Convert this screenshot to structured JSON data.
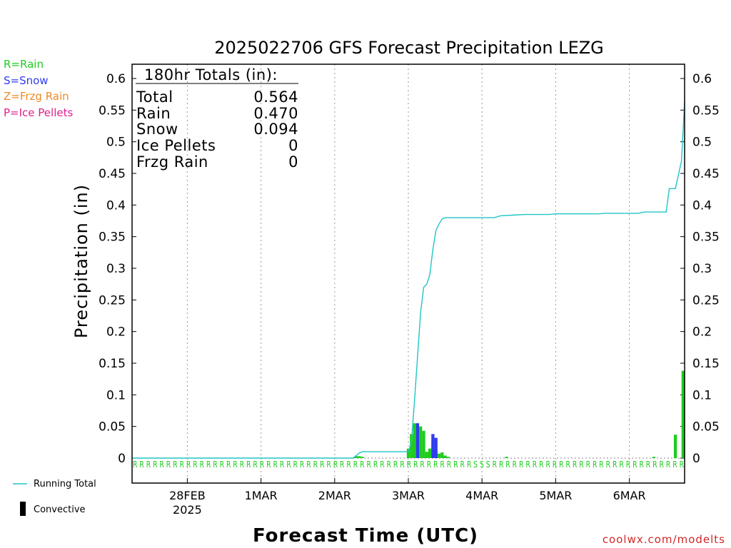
{
  "chart_data": {
    "type": "bar",
    "title": "2025022706 GFS Forecast Precipitation LEZG",
    "xlabel": "Forecast Time (UTC)",
    "ylabel": "Precipitation (in)",
    "ylim": [
      0,
      0.6
    ],
    "y_ticks": [
      "0",
      "0.05",
      "0.1",
      "0.15",
      "0.2",
      "0.25",
      "0.3",
      "0.35",
      "0.4",
      "0.45",
      "0.5",
      "0.55",
      "0.6"
    ],
    "x_range_hours": [
      0,
      180
    ],
    "x_ticks": [
      {
        "label": "28FEB",
        "sublabel": "2025",
        "hour": 18
      },
      {
        "label": "1MAR",
        "sublabel": "",
        "hour": 42
      },
      {
        "label": "2MAR",
        "sublabel": "",
        "hour": 66
      },
      {
        "label": "3MAR",
        "sublabel": "",
        "hour": 90
      },
      {
        "label": "4MAR",
        "sublabel": "",
        "hour": 114
      },
      {
        "label": "5MAR",
        "sublabel": "",
        "hour": 138
      },
      {
        "label": "6MAR",
        "sublabel": "",
        "hour": 162
      }
    ],
    "grid": "vertical dotted at day boundaries",
    "key": [
      {
        "text": "R=Rain",
        "color": "#1ecc1e"
      },
      {
        "text": "S=Snow",
        "color": "#2f3cf0"
      },
      {
        "text": "Z=Frzg Rain",
        "color": "#f08a28"
      },
      {
        "text": "P=Ice Pellets",
        "color": "#e0208c"
      }
    ],
    "legend": [
      {
        "text": "Running Total",
        "symbol": "line",
        "color": "#22c4c8"
      },
      {
        "text": "Convective",
        "symbol": "bar",
        "color": "#000000"
      }
    ],
    "totals": {
      "header": "180hr Totals (in):",
      "rows": [
        {
          "label": "Total",
          "value": "0.564"
        },
        {
          "label": "Rain",
          "value": "0.470"
        },
        {
          "label": "Snow",
          "value": "0.094"
        },
        {
          "label": "Ice Pellets",
          "value": "0"
        },
        {
          "label": "Frzg Rain",
          "value": "0"
        }
      ]
    },
    "series": [
      {
        "name": "Running Total",
        "type": "line",
        "color": "#22c4c8",
        "points": [
          [
            0,
            0
          ],
          [
            72,
            0
          ],
          [
            74,
            0.008
          ],
          [
            75,
            0.01
          ],
          [
            90,
            0.01
          ],
          [
            91,
            0.025
          ],
          [
            92,
            0.09
          ],
          [
            93,
            0.16
          ],
          [
            94,
            0.23
          ],
          [
            95,
            0.27
          ],
          [
            96,
            0.275
          ],
          [
            97,
            0.29
          ],
          [
            98,
            0.33
          ],
          [
            99,
            0.36
          ],
          [
            100,
            0.37
          ],
          [
            101,
            0.378
          ],
          [
            102,
            0.38
          ],
          [
            118,
            0.38
          ],
          [
            120,
            0.383
          ],
          [
            124,
            0.384
          ],
          [
            128,
            0.385
          ],
          [
            136,
            0.385
          ],
          [
            138,
            0.386
          ],
          [
            142,
            0.386
          ],
          [
            152,
            0.386
          ],
          [
            154,
            0.387
          ],
          [
            165,
            0.387
          ],
          [
            167,
            0.389
          ],
          [
            174,
            0.389
          ],
          [
            175,
            0.426
          ],
          [
            177,
            0.426
          ],
          [
            179,
            0.47
          ],
          [
            180,
            0.564
          ]
        ]
      },
      {
        "name": "Rain",
        "type": "bar",
        "color": "#1ecc1e",
        "points": [
          [
            73,
            0.003
          ],
          [
            74,
            0.003
          ],
          [
            75,
            0.002
          ],
          [
            90,
            0.015
          ],
          [
            91,
            0.038
          ],
          [
            92,
            0.055
          ],
          [
            93,
            0.055
          ],
          [
            94,
            0.05
          ],
          [
            95,
            0.043
          ],
          [
            96,
            0.01
          ],
          [
            97,
            0.015
          ],
          [
            98,
            0.025
          ],
          [
            99,
            0.013
          ],
          [
            100,
            0.007
          ],
          [
            101,
            0.009
          ],
          [
            102,
            0.004
          ],
          [
            103,
            0.002
          ],
          [
            122,
            0.002
          ],
          [
            170,
            0.002
          ],
          [
            177,
            0.037
          ],
          [
            180,
            0.138
          ]
        ]
      },
      {
        "name": "Snow",
        "type": "bar",
        "color": "#2f3cf0",
        "points": [
          [
            93,
            0.055
          ],
          [
            98,
            0.038
          ],
          [
            99,
            0.032
          ]
        ]
      }
    ],
    "precip_type_marks": "R R R R R R R R R R R R R R R R R R R R R R R R R R R R R R R R R R R R R R R R R R R R R R R R R R R S S S R R R R R R R R R R R R R R R R R R R R R R R R R R R R R"
  },
  "credit": "coolwx.com/modelts"
}
